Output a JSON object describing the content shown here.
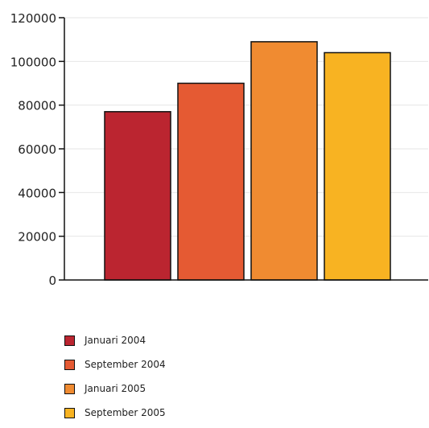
{
  "chart_data": {
    "type": "bar",
    "title": "",
    "xlabel": "",
    "ylabel": "",
    "ylim": [
      0,
      120000
    ],
    "yticks": [
      0,
      20000,
      40000,
      60000,
      80000,
      100000,
      120000
    ],
    "grid": true,
    "legend_position": "bottom-left",
    "series": [
      {
        "name": "Januari 2004",
        "value": 77000,
        "color": "#bb2530"
      },
      {
        "name": "September 2004",
        "value": 90000,
        "color": "#e55a33"
      },
      {
        "name": "Januari 2005",
        "value": 109000,
        "color": "#f08b31"
      },
      {
        "name": "September 2005",
        "value": 104000,
        "color": "#f8b322"
      }
    ]
  }
}
